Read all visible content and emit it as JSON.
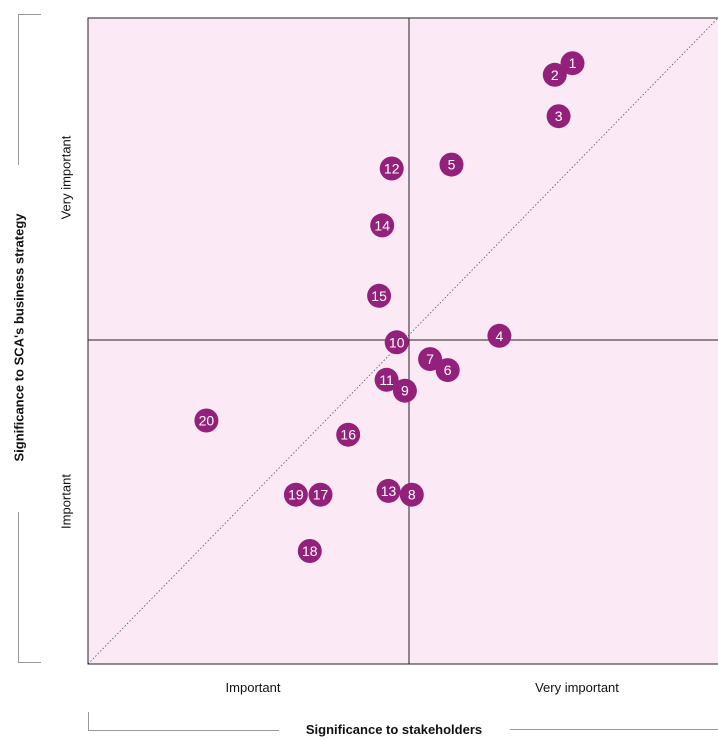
{
  "chart_data": {
    "type": "scatter",
    "title": "",
    "xlabel": "Significance to stakeholders",
    "ylabel": "Significance to SCA's business strategy",
    "x_categories": [
      "Important",
      "Very important"
    ],
    "y_categories": [
      "Important",
      "Very important"
    ],
    "xlim": [
      0,
      1
    ],
    "ylim": [
      0,
      1
    ],
    "diagonal": true,
    "colors": {
      "marker": "#93217b",
      "background": "#fbeaf5",
      "grid": "#222222"
    },
    "points": [
      {
        "label": "1",
        "x": 0.769,
        "y": 0.93
      },
      {
        "label": "2",
        "x": 0.741,
        "y": 0.912
      },
      {
        "label": "3",
        "x": 0.747,
        "y": 0.848
      },
      {
        "label": "4",
        "x": 0.653,
        "y": 0.508
      },
      {
        "label": "5",
        "x": 0.577,
        "y": 0.773
      },
      {
        "label": "6",
        "x": 0.571,
        "y": 0.455
      },
      {
        "label": "7",
        "x": 0.543,
        "y": 0.472
      },
      {
        "label": "8",
        "x": 0.514,
        "y": 0.262
      },
      {
        "label": "9",
        "x": 0.503,
        "y": 0.423
      },
      {
        "label": "10",
        "x": 0.49,
        "y": 0.498
      },
      {
        "label": "11",
        "x": 0.474,
        "y": 0.44
      },
      {
        "label": "12",
        "x": 0.482,
        "y": 0.767
      },
      {
        "label": "13",
        "x": 0.477,
        "y": 0.268
      },
      {
        "label": "14",
        "x": 0.467,
        "y": 0.679
      },
      {
        "label": "15",
        "x": 0.462,
        "y": 0.57
      },
      {
        "label": "16",
        "x": 0.413,
        "y": 0.355
      },
      {
        "label": "17",
        "x": 0.369,
        "y": 0.262
      },
      {
        "label": "18",
        "x": 0.352,
        "y": 0.175
      },
      {
        "label": "19",
        "x": 0.33,
        "y": 0.262
      },
      {
        "label": "20",
        "x": 0.188,
        "y": 0.377
      }
    ]
  }
}
